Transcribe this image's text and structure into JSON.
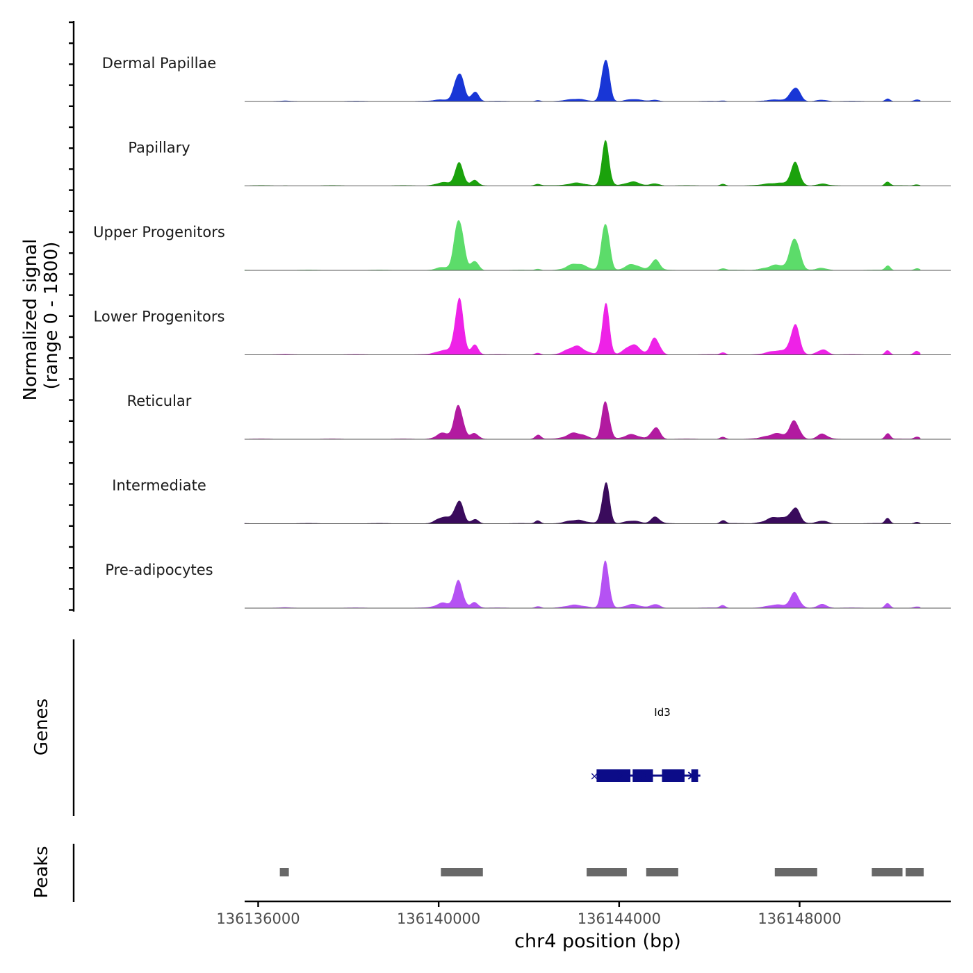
{
  "chart_data": {
    "type": "area",
    "title": "",
    "ylabel_line1": "Normalized signal",
    "ylabel_line2": "(range 0 - 1800)",
    "ylim": [
      0,
      1800
    ],
    "xlabel": "chr4 position (bp)",
    "xlim": [
      136135700,
      136151350
    ],
    "x_ticks": [
      136136000,
      136140000,
      136144000,
      136148000
    ],
    "x_tick_labels": [
      "136136000",
      "136140000",
      "136144000",
      "136148000"
    ],
    "peak_centers": [
      136136600,
      136140100,
      136140450,
      136140800,
      136142200,
      136143050,
      136143700,
      136144300,
      136144800,
      136146300,
      136147500,
      136147900,
      136148500,
      136149950,
      136150600
    ],
    "peak_widths": [
      60,
      150,
      95,
      80,
      60,
      200,
      80,
      160,
      95,
      60,
      230,
      100,
      110,
      55,
      60
    ],
    "series": [
      {
        "name": "Dermal Papillae",
        "color": "#1836d6",
        "peak_heights": [
          10,
          60,
          1050,
          300,
          30,
          70,
          1500,
          60,
          40,
          20,
          50,
          450,
          50,
          90,
          40
        ]
      },
      {
        "name": "Papillary",
        "color": "#1ba20c",
        "peak_heights": [
          8,
          120,
          700,
          150,
          50,
          90,
          1450,
          120,
          80,
          60,
          100,
          650,
          60,
          140,
          40
        ]
      },
      {
        "name": "Upper Progenitors",
        "color": "#5cdc6a",
        "peak_heights": [
          5,
          100,
          1650,
          300,
          40,
          200,
          1800,
          180,
          350,
          60,
          180,
          950,
          80,
          150,
          60
        ]
      },
      {
        "name": "Lower Progenitors",
        "color": "#ee22e7",
        "peak_heights": [
          5,
          150,
          1600,
          300,
          60,
          250,
          1650,
          300,
          600,
          60,
          120,
          850,
          180,
          130,
          110
        ]
      },
      {
        "name": "Reticular",
        "color": "#b21aa0",
        "peak_heights": [
          5,
          200,
          1000,
          200,
          150,
          200,
          1250,
          150,
          400,
          70,
          170,
          550,
          160,
          180,
          90
        ]
      },
      {
        "name": "Intermediate",
        "color": "#3a0b5c",
        "peak_heights": [
          5,
          200,
          700,
          150,
          100,
          120,
          1250,
          100,
          200,
          90,
          200,
          500,
          90,
          150,
          50
        ]
      },
      {
        "name": "Pre-adipocytes",
        "color": "#b552f3",
        "peak_heights": [
          10,
          150,
          850,
          200,
          60,
          100,
          1350,
          120,
          120,
          80,
          90,
          500,
          110,
          160,
          40
        ]
      }
    ],
    "genes_track_label": "Genes",
    "gene": {
      "name": "Id3",
      "start": 136143500,
      "end": 136145800,
      "color": "#0c0c88",
      "exons": [
        [
          136143500,
          136144250
        ],
        [
          136144300,
          136144750
        ],
        [
          136144950,
          136145450
        ],
        [
          136145600,
          136145750
        ]
      ]
    },
    "peaks_track_label": "Peaks",
    "peaks_color": "#686868",
    "peaks": [
      [
        136136480,
        136136680
      ],
      [
        136140050,
        136140980
      ],
      [
        136143280,
        136144170
      ],
      [
        136144600,
        136145310
      ],
      [
        136147450,
        136148390
      ],
      [
        136149600,
        136150280
      ],
      [
        136150350,
        136150750
      ]
    ]
  }
}
